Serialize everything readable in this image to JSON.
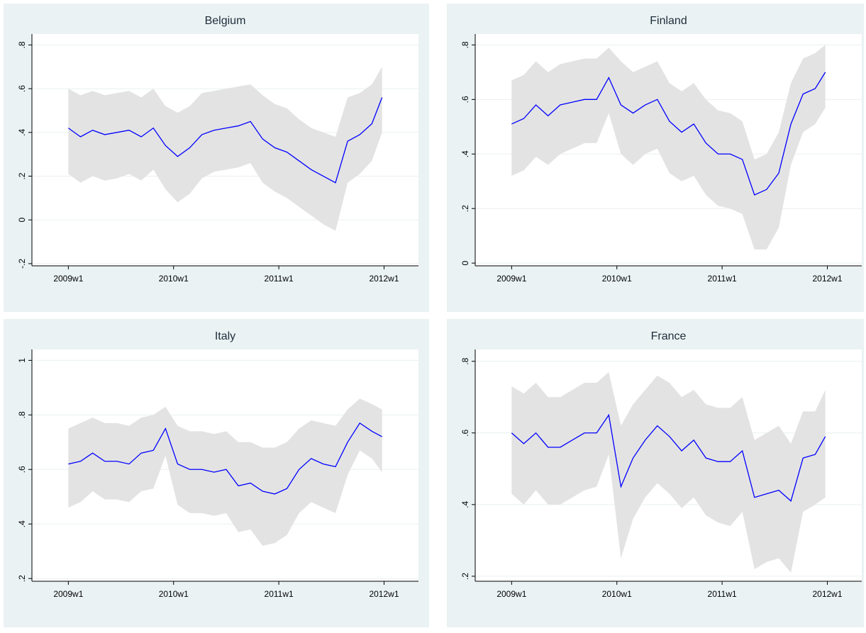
{
  "chart_data": [
    {
      "type": "line",
      "title": "Belgium",
      "color": "#0000ff",
      "band_color": "#e3e3e3",
      "grid": true,
      "x": [
        0,
        6,
        12,
        18,
        24,
        30,
        36,
        42,
        48,
        54,
        60,
        66,
        72,
        78,
        84,
        90,
        96,
        102,
        108,
        114,
        120,
        126,
        132,
        138,
        144,
        150,
        155
      ],
      "values": [
        0.42,
        0.38,
        0.41,
        0.39,
        0.4,
        0.41,
        0.38,
        0.42,
        0.34,
        0.29,
        0.33,
        0.39,
        0.41,
        0.42,
        0.43,
        0.45,
        0.37,
        0.33,
        0.31,
        0.27,
        0.23,
        0.2,
        0.17,
        0.36,
        0.39,
        0.44,
        0.56
      ],
      "upper": [
        0.6,
        0.57,
        0.59,
        0.57,
        0.58,
        0.59,
        0.56,
        0.6,
        0.52,
        0.49,
        0.52,
        0.58,
        0.59,
        0.6,
        0.61,
        0.62,
        0.57,
        0.53,
        0.51,
        0.46,
        0.42,
        0.4,
        0.38,
        0.56,
        0.58,
        0.62,
        0.7
      ],
      "lower": [
        0.21,
        0.17,
        0.2,
        0.18,
        0.19,
        0.21,
        0.18,
        0.23,
        0.14,
        0.08,
        0.12,
        0.19,
        0.22,
        0.23,
        0.24,
        0.26,
        0.17,
        0.13,
        0.1,
        0.06,
        0.02,
        -0.02,
        -0.05,
        0.17,
        0.21,
        0.27,
        0.4
      ],
      "xlim": [
        -18,
        173
      ],
      "xticks": [
        {
          "value": 0,
          "label": "2009w1"
        },
        {
          "value": 52,
          "label": "2010w1"
        },
        {
          "value": 104,
          "label": "2011w1"
        },
        {
          "value": 156,
          "label": "2012w1"
        }
      ],
      "ylim": [
        -0.21,
        0.85
      ],
      "yticks": [
        {
          "value": -0.2,
          "label": "-.2"
        },
        0,
        {
          "value": 0.2,
          "label": ".2"
        },
        {
          "value": 0.4,
          "label": ".4"
        },
        {
          "value": 0.6,
          "label": ".6"
        },
        {
          "value": 0.8,
          "label": ".8"
        }
      ]
    },
    {
      "type": "line",
      "title": "Finland",
      "color": "#0000ff",
      "band_color": "#e3e3e3",
      "grid": true,
      "x": [
        0,
        6,
        12,
        18,
        24,
        30,
        36,
        42,
        48,
        54,
        60,
        66,
        72,
        78,
        84,
        90,
        96,
        102,
        108,
        114,
        120,
        126,
        132,
        138,
        144,
        150,
        155
      ],
      "values": [
        0.51,
        0.53,
        0.58,
        0.54,
        0.58,
        0.59,
        0.6,
        0.6,
        0.68,
        0.58,
        0.55,
        0.58,
        0.6,
        0.52,
        0.48,
        0.51,
        0.44,
        0.4,
        0.4,
        0.38,
        0.25,
        0.27,
        0.33,
        0.51,
        0.62,
        0.64,
        0.7
      ],
      "upper": [
        0.67,
        0.69,
        0.74,
        0.7,
        0.73,
        0.74,
        0.75,
        0.75,
        0.79,
        0.74,
        0.7,
        0.72,
        0.74,
        0.66,
        0.63,
        0.66,
        0.6,
        0.56,
        0.55,
        0.52,
        0.38,
        0.4,
        0.48,
        0.66,
        0.75,
        0.77,
        0.8
      ],
      "lower": [
        0.32,
        0.34,
        0.39,
        0.36,
        0.4,
        0.42,
        0.44,
        0.44,
        0.55,
        0.4,
        0.36,
        0.4,
        0.42,
        0.33,
        0.3,
        0.32,
        0.25,
        0.21,
        0.2,
        0.18,
        0.05,
        0.05,
        0.13,
        0.36,
        0.48,
        0.51,
        0.57
      ],
      "xlim": [
        -18,
        173
      ],
      "xticks": [
        {
          "value": 0,
          "label": "2009w1"
        },
        {
          "value": 52,
          "label": "2010w1"
        },
        {
          "value": 104,
          "label": "2011w1"
        },
        {
          "value": 156,
          "label": "2012w1"
        }
      ],
      "ylim": [
        -0.01,
        0.84
      ],
      "yticks": [
        0,
        {
          "value": 0.2,
          "label": ".2"
        },
        {
          "value": 0.4,
          "label": ".4"
        },
        {
          "value": 0.6,
          "label": ".6"
        },
        {
          "value": 0.8,
          "label": ".8"
        }
      ]
    },
    {
      "type": "line",
      "title": "Italy",
      "color": "#0000ff",
      "band_color": "#e3e3e3",
      "grid": true,
      "x": [
        0,
        6,
        12,
        18,
        24,
        30,
        36,
        42,
        48,
        54,
        60,
        66,
        72,
        78,
        84,
        90,
        96,
        102,
        108,
        114,
        120,
        126,
        132,
        138,
        144,
        150,
        155
      ],
      "values": [
        0.62,
        0.63,
        0.66,
        0.63,
        0.63,
        0.62,
        0.66,
        0.67,
        0.75,
        0.62,
        0.6,
        0.6,
        0.59,
        0.6,
        0.54,
        0.55,
        0.52,
        0.51,
        0.53,
        0.6,
        0.64,
        0.62,
        0.61,
        0.7,
        0.77,
        0.74,
        0.72
      ],
      "upper": [
        0.75,
        0.77,
        0.79,
        0.77,
        0.77,
        0.76,
        0.79,
        0.8,
        0.83,
        0.76,
        0.74,
        0.74,
        0.73,
        0.74,
        0.7,
        0.7,
        0.68,
        0.68,
        0.7,
        0.75,
        0.78,
        0.77,
        0.76,
        0.82,
        0.86,
        0.84,
        0.82
      ],
      "lower": [
        0.46,
        0.48,
        0.52,
        0.49,
        0.49,
        0.48,
        0.52,
        0.53,
        0.65,
        0.47,
        0.44,
        0.44,
        0.43,
        0.44,
        0.37,
        0.38,
        0.32,
        0.33,
        0.36,
        0.44,
        0.48,
        0.46,
        0.44,
        0.58,
        0.67,
        0.64,
        0.59
      ],
      "xlim": [
        -18,
        173
      ],
      "xticks": [
        {
          "value": 0,
          "label": "2009w1"
        },
        {
          "value": 52,
          "label": "2010w1"
        },
        {
          "value": 104,
          "label": "2011w1"
        },
        {
          "value": 156,
          "label": "2012w1"
        }
      ],
      "ylim": [
        0.19,
        1.04
      ],
      "yticks": [
        {
          "value": 0.2,
          "label": ".2"
        },
        {
          "value": 0.4,
          "label": ".4"
        },
        {
          "value": 0.6,
          "label": ".6"
        },
        {
          "value": 0.8,
          "label": ".8"
        },
        1
      ]
    },
    {
      "type": "line",
      "title": "France",
      "color": "#0000ff",
      "band_color": "#e3e3e3",
      "grid": true,
      "x": [
        0,
        6,
        12,
        18,
        24,
        30,
        36,
        42,
        48,
        54,
        60,
        66,
        72,
        78,
        84,
        90,
        96,
        102,
        108,
        114,
        120,
        126,
        132,
        138,
        144,
        150,
        155
      ],
      "values": [
        0.6,
        0.57,
        0.6,
        0.56,
        0.56,
        0.58,
        0.6,
        0.6,
        0.65,
        0.45,
        0.53,
        0.58,
        0.62,
        0.59,
        0.55,
        0.58,
        0.53,
        0.52,
        0.52,
        0.55,
        0.42,
        0.43,
        0.44,
        0.41,
        0.53,
        0.54,
        0.59
      ],
      "upper": [
        0.73,
        0.71,
        0.74,
        0.7,
        0.7,
        0.72,
        0.74,
        0.74,
        0.77,
        0.62,
        0.68,
        0.72,
        0.76,
        0.74,
        0.7,
        0.72,
        0.68,
        0.67,
        0.67,
        0.7,
        0.58,
        0.6,
        0.62,
        0.57,
        0.66,
        0.66,
        0.72
      ],
      "lower": [
        0.43,
        0.4,
        0.44,
        0.4,
        0.4,
        0.42,
        0.44,
        0.45,
        0.54,
        0.25,
        0.36,
        0.42,
        0.46,
        0.43,
        0.39,
        0.42,
        0.37,
        0.35,
        0.34,
        0.38,
        0.22,
        0.24,
        0.25,
        0.21,
        0.38,
        0.4,
        0.42
      ],
      "xlim": [
        -18,
        173
      ],
      "xticks": [
        {
          "value": 0,
          "label": "2009w1"
        },
        {
          "value": 52,
          "label": "2010w1"
        },
        {
          "value": 104,
          "label": "2011w1"
        },
        {
          "value": 156,
          "label": "2012w1"
        }
      ],
      "ylim": [
        0.186,
        0.833
      ],
      "yticks": [
        {
          "value": 0.2,
          "label": ".2"
        },
        {
          "value": 0.4,
          "label": ".4"
        },
        {
          "value": 0.6,
          "label": ".6"
        },
        {
          "value": 0.8,
          "label": ".8"
        }
      ]
    }
  ]
}
